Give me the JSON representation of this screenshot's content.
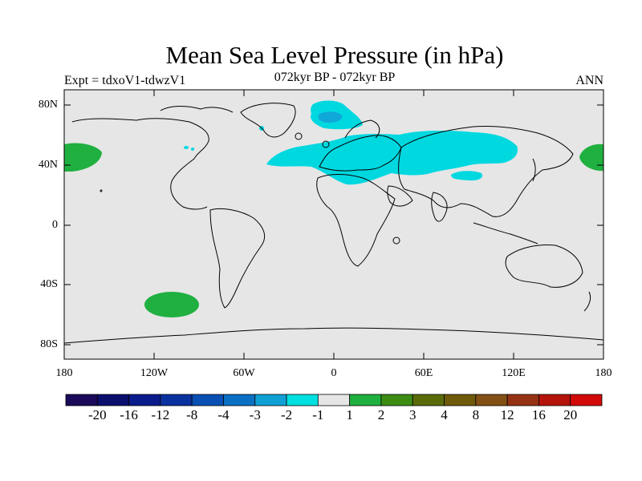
{
  "header": {
    "title": "Mean Sea Level Pressure (in hPa)",
    "experiment": "Expt = tdxoV1-tdwzV1",
    "period": "072kyr BP - 072kyr BP",
    "season": "ANN"
  },
  "axes": {
    "y_ticks": [
      "80N",
      "40N",
      "0",
      "40S",
      "80S"
    ],
    "x_ticks": [
      "180",
      "120W",
      "60W",
      "0",
      "60E",
      "120E",
      "180"
    ]
  },
  "colorbar": {
    "colors": [
      "#1b0a5a",
      "#0a0f6e",
      "#0a1b8c",
      "#0a31a0",
      "#0a50b4",
      "#0a70c4",
      "#10a0d4",
      "#00e0e0",
      "#e6e6e6",
      "#20b040",
      "#3c8c14",
      "#5a6c0a",
      "#6e5a0a",
      "#825014",
      "#963214",
      "#b4140a",
      "#d20a0a"
    ],
    "labels": [
      "-20",
      "-16",
      "-12",
      "-8",
      "-4",
      "-3",
      "-2",
      "-1",
      "1",
      "2",
      "3",
      "4",
      "8",
      "12",
      "16",
      "20"
    ]
  },
  "map_colors": {
    "background": "#e6e6e6",
    "minus_1": "#00d8e0",
    "minus_2": "#10a8d8",
    "plus_1": "#20b040"
  }
}
